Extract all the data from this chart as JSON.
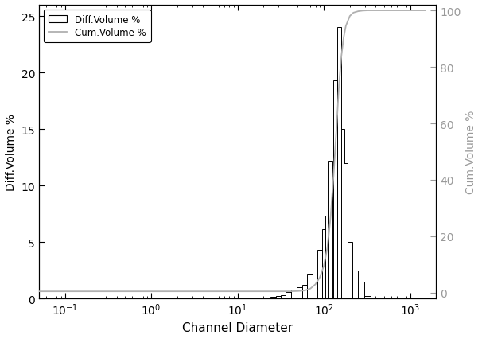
{
  "title": "",
  "xlabel": "Channel Diameter",
  "ylabel_left": "Diff.Volume %",
  "ylabel_right": "Cum.Volume %",
  "bar_centers": [
    22,
    26,
    30,
    34,
    39,
    45,
    52,
    60,
    69,
    80,
    90,
    100,
    110,
    120,
    135,
    150,
    165,
    180,
    200,
    230,
    270,
    320,
    380
  ],
  "bar_heights": [
    0.05,
    0.12,
    0.18,
    0.25,
    0.55,
    0.8,
    1.0,
    1.2,
    2.2,
    3.5,
    4.3,
    6.1,
    7.3,
    12.2,
    19.3,
    24.0,
    15.0,
    12.0,
    5.0,
    2.5,
    1.5,
    0.2,
    0.0
  ],
  "cum_x_points": [
    0.05,
    0.1,
    0.5,
    1,
    5,
    10,
    20,
    30,
    40,
    50,
    60,
    70,
    80,
    90,
    100,
    110,
    120,
    130,
    140,
    150,
    160,
    170,
    180,
    200,
    220,
    250,
    280,
    320,
    380,
    500,
    800,
    1500
  ],
  "cum_y_points": [
    0.5,
    0.5,
    0.5,
    0.5,
    0.5,
    0.5,
    0.5,
    0.5,
    0.5,
    0.6,
    0.8,
    1.5,
    3.0,
    5.5,
    9.5,
    16.0,
    27.0,
    42.0,
    58.0,
    73.5,
    84.0,
    90.5,
    94.5,
    98.0,
    99.2,
    99.7,
    99.9,
    100,
    100,
    100,
    100,
    100
  ],
  "bar_color": "#ffffff",
  "bar_edgecolor": "#000000",
  "cum_line_color": "#b0b0b0",
  "ylim_left": [
    0,
    26
  ],
  "ylim_right": [
    -2,
    102
  ],
  "right_yticks": [
    0,
    20,
    40,
    60,
    80,
    100
  ],
  "xlim": [
    0.05,
    2000
  ],
  "left_yticks": [
    0,
    5,
    10,
    15,
    20,
    25
  ],
  "legend_labels": [
    "Diff.Volume %",
    "Cum.Volume %"
  ],
  "background_color": "#ffffff",
  "spine_color": "#000000",
  "tick_color": "#000000",
  "label_color": "#000000",
  "right_label_color": "#999999",
  "right_tick_color": "#999999"
}
